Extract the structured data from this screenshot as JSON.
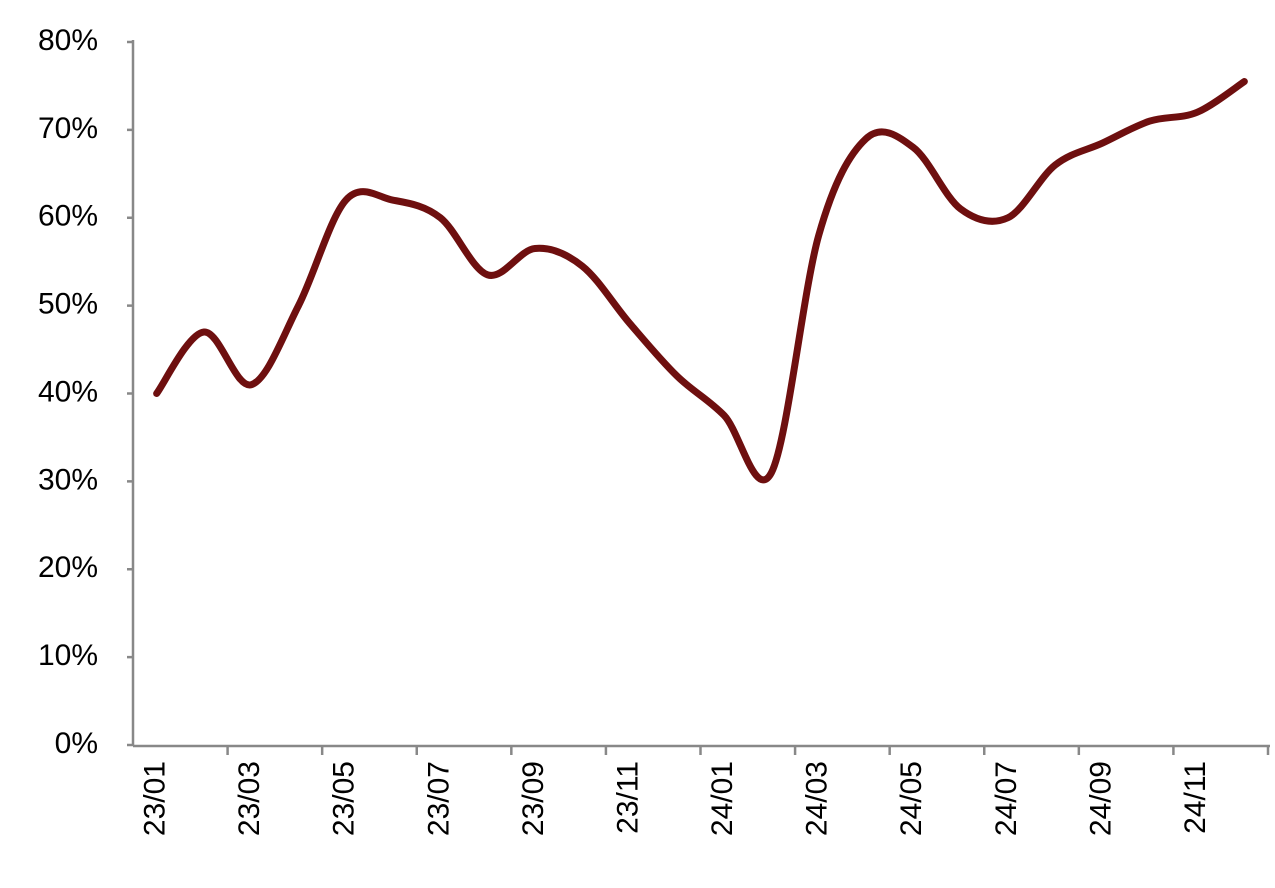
{
  "chart_data": {
    "type": "line",
    "categories": [
      "23/01",
      null,
      "23/03",
      null,
      "23/05",
      null,
      "23/07",
      null,
      "23/09",
      null,
      "23/11",
      null,
      "24/01",
      null,
      "24/03",
      null,
      "24/05",
      null,
      "24/07",
      null,
      "24/09",
      null,
      "24/11",
      null
    ],
    "series": [
      {
        "color": "#6e0f0f",
        "values": [
          40,
          47,
          41,
          50,
          62,
          62,
          60,
          53.5,
          56.5,
          54.5,
          48,
          42,
          37.5,
          31,
          58,
          69,
          68,
          61,
          60,
          66,
          68.5,
          71,
          72,
          75.5
        ]
      }
    ],
    "ylim": [
      0,
      80
    ],
    "yticks": [
      {
        "value": 0,
        "label": "0%"
      },
      {
        "value": 10,
        "label": "10%"
      },
      {
        "value": 20,
        "label": "20%"
      },
      {
        "value": 30,
        "label": "30%"
      },
      {
        "value": 40,
        "label": "40%"
      },
      {
        "value": 50,
        "label": "50%"
      },
      {
        "value": 60,
        "label": "60%"
      },
      {
        "value": 70,
        "label": "70%"
      },
      {
        "value": 80,
        "label": "80%"
      }
    ],
    "grid": false
  }
}
